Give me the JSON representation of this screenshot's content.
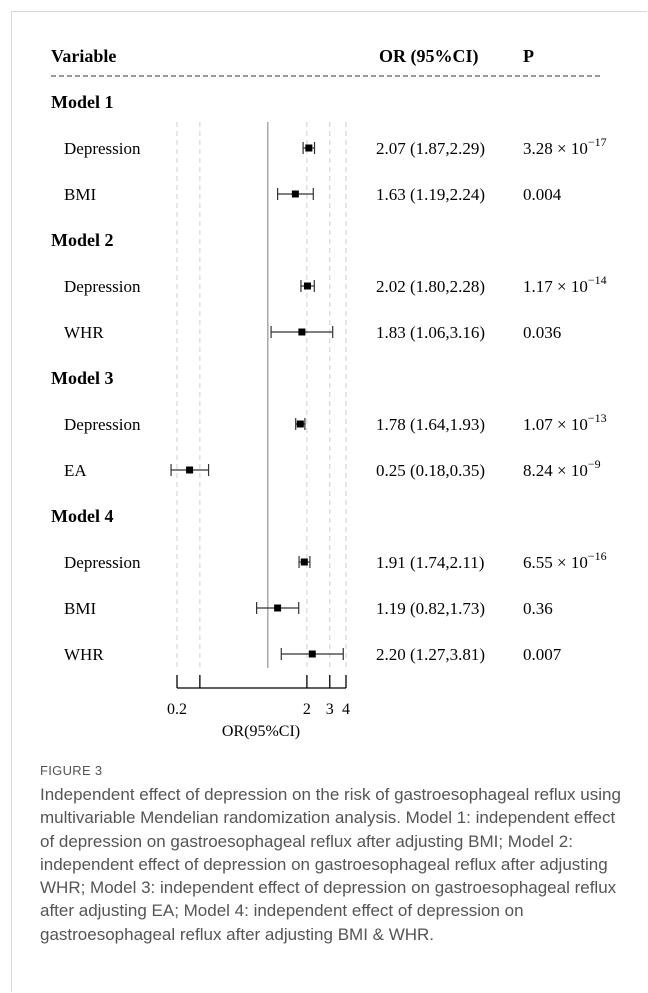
{
  "chart_data": {
    "type": "forest",
    "columns": {
      "variable": "Variable",
      "or": "OR (95%CI)",
      "p": "P"
    },
    "xlabel": "OR(95%CI)",
    "x_scale": "log",
    "xlim": [
      0.2,
      4
    ],
    "xticks": [
      "0.2",
      "2",
      "3",
      "4"
    ],
    "null_value": 1,
    "rows": [
      {
        "kind": "header",
        "label": "Model 1"
      },
      {
        "kind": "data",
        "label": "Depression",
        "or": 2.07,
        "lo": 1.87,
        "hi": 2.29,
        "text": "2.07 (1.87,2.29)",
        "p": "3.28 × 10",
        "p_exp": "−17"
      },
      {
        "kind": "data",
        "label": "BMI",
        "or": 1.63,
        "lo": 1.19,
        "hi": 2.24,
        "text": "1.63 (1.19,2.24)",
        "p": "0.004",
        "p_exp": ""
      },
      {
        "kind": "header",
        "label": "Model 2"
      },
      {
        "kind": "data",
        "label": "Depression",
        "or": 2.02,
        "lo": 1.8,
        "hi": 2.28,
        "text": "2.02 (1.80,2.28)",
        "p": "1.17 × 10",
        "p_exp": "−14"
      },
      {
        "kind": "data",
        "label": "WHR",
        "or": 1.83,
        "lo": 1.06,
        "hi": 3.16,
        "text": "1.83 (1.06,3.16)",
        "p": "0.036",
        "p_exp": ""
      },
      {
        "kind": "header",
        "label": "Model 3"
      },
      {
        "kind": "data",
        "label": "Depression",
        "or": 1.78,
        "lo": 1.64,
        "hi": 1.93,
        "text": "1.78 (1.64,1.93)",
        "p": "1.07 × 10",
        "p_exp": "−13"
      },
      {
        "kind": "data",
        "label": "EA",
        "or": 0.25,
        "lo": 0.18,
        "hi": 0.35,
        "text": "0.25 (0.18,0.35)",
        "p": "8.24 × 10",
        "p_exp": "−9"
      },
      {
        "kind": "header",
        "label": "Model 4"
      },
      {
        "kind": "data",
        "label": "Depression",
        "or": 1.91,
        "lo": 1.74,
        "hi": 2.11,
        "text": "1.91 (1.74,2.11)",
        "p": "6.55 × 10",
        "p_exp": "−16"
      },
      {
        "kind": "data",
        "label": "BMI",
        "or": 1.19,
        "lo": 0.82,
        "hi": 1.73,
        "text": "1.19 (0.82,1.73)",
        "p": "0.36",
        "p_exp": ""
      },
      {
        "kind": "data",
        "label": "WHR",
        "or": 2.2,
        "lo": 1.27,
        "hi": 3.81,
        "text": "2.20 (1.27,3.81)",
        "p": "0.007",
        "p_exp": ""
      }
    ]
  },
  "figure": {
    "label": "FIGURE 3",
    "caption": "Independent effect of depression on the risk of gastroesophageal reflux using multivariable Mendelian randomization analysis. Model 1: independent effect of depression on gastroesophageal reflux after adjusting BMI; Model 2: independent effect of depression on gastroesophageal reflux after adjusting WHR; Model 3: independent effect of depression on gastroesophageal reflux after adjusting EA; Model 4: independent effect of depression on gastroesophageal reflux after adjusting BMI & WHR."
  }
}
